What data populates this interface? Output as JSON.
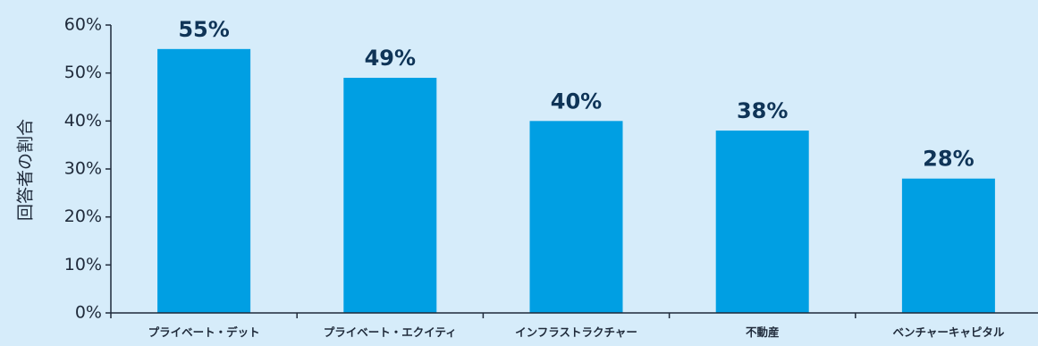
{
  "chart_data": {
    "type": "bar",
    "categories": [
      "プライベート・デット",
      "プライベート・エクイティ",
      "インフラストラクチャー",
      "不動産",
      "ベンチャーキャピタル"
    ],
    "values": [
      55,
      49,
      40,
      38,
      28
    ],
    "data_labels": [
      "55%",
      "49%",
      "40%",
      "38%",
      "28%"
    ],
    "ylabel": "回答者の割合",
    "xlabel": "",
    "ylim": [
      0,
      60
    ],
    "yticks": [
      0,
      10,
      20,
      30,
      40,
      50,
      60
    ],
    "ytick_labels": [
      "0%",
      "10%",
      "20%",
      "30%",
      "40%",
      "50%",
      "60%"
    ],
    "grid": false,
    "colors": {
      "background": "#d6ecfa",
      "bar": "#009fe3",
      "axis": "#1f2a3a",
      "data_label": "#0f3457"
    }
  }
}
